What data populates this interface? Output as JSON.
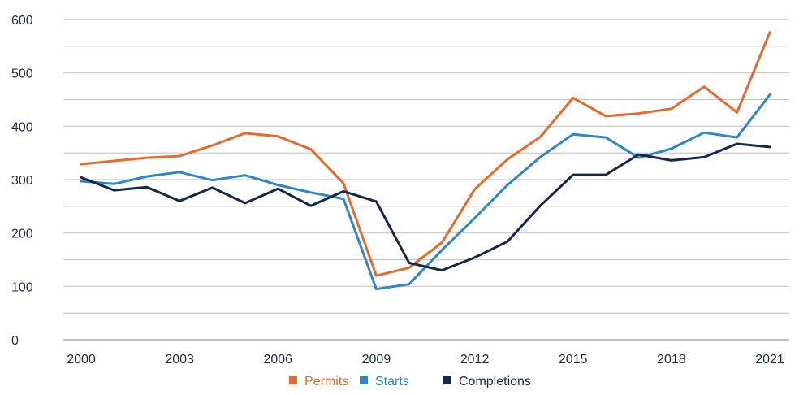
{
  "chart_data": {
    "type": "line",
    "title": "",
    "xlabel": "",
    "ylabel": "",
    "x": [
      2000,
      2001,
      2002,
      2003,
      2004,
      2005,
      2006,
      2007,
      2008,
      2009,
      2010,
      2011,
      2012,
      2013,
      2014,
      2015,
      2016,
      2017,
      2018,
      2019,
      2020,
      2021
    ],
    "x_ticks": [
      "2000",
      "2003",
      "2006",
      "2009",
      "2012",
      "2015",
      "2018",
      "2021"
    ],
    "y_ticks": [
      "0",
      "100",
      "200",
      "300",
      "400",
      "500",
      "600"
    ],
    "ylim": [
      0,
      600
    ],
    "grid": "horizontal",
    "legend_position": "bottom",
    "series": [
      {
        "name": "Permits",
        "color": "#e8692b",
        "values": [
          329,
          335,
          341,
          344,
          364,
          387,
          381,
          357,
          293,
          120,
          135,
          182,
          282,
          338,
          380,
          453,
          419,
          424,
          433,
          474,
          426,
          576
        ]
      },
      {
        "name": "Starts",
        "color": "#2f86c6",
        "values": [
          297,
          292,
          306,
          314,
          299,
          308,
          290,
          276,
          264,
          95,
          104,
          168,
          228,
          290,
          342,
          385,
          379,
          341,
          358,
          388,
          379,
          459
        ]
      },
      {
        "name": "Completions",
        "color": "#13294b",
        "values": [
          304,
          280,
          286,
          260,
          285,
          256,
          283,
          251,
          278,
          259,
          144,
          130,
          154,
          184,
          251,
          309,
          309,
          347,
          336,
          342,
          367,
          361
        ]
      }
    ]
  }
}
